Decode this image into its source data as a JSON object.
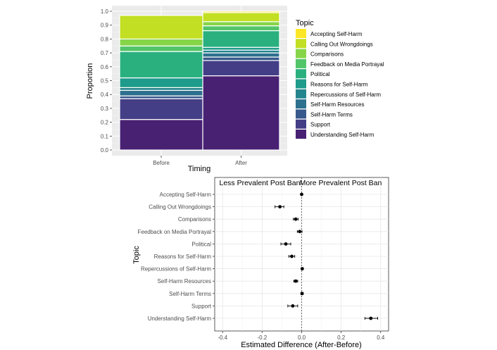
{
  "chart_data": [
    {
      "type": "bar",
      "stacked": true,
      "variant": "mosaic",
      "categories": [
        "Before",
        "After"
      ],
      "column_widths": [
        0.52,
        0.48
      ],
      "xlabel": "Timing",
      "ylabel": "Proportion",
      "ylim": [
        0,
        1
      ],
      "yticks": [
        "0.0",
        "0.1",
        "0.2",
        "0.3",
        "0.4",
        "0.5",
        "0.6",
        "0.7",
        "0.8",
        "0.9",
        "1.0"
      ],
      "grid": true,
      "legend": {
        "title": "Topic",
        "position": "right"
      },
      "series": [
        {
          "name": "Accepting Self-Harm",
          "color": "#FDE725",
          "values": [
            0.0,
            0.01
          ]
        },
        {
          "name": "Calling Out Wrongdoings",
          "color": "#C2DF23",
          "values": [
            0.17,
            0.065
          ]
        },
        {
          "name": "Comparisons",
          "color": "#86D549",
          "values": [
            0.05,
            0.03
          ]
        },
        {
          "name": "Feedback on Media Portrayal",
          "color": "#52C569",
          "values": [
            0.04,
            0.035
          ]
        },
        {
          "name": "Political",
          "color": "#2AB07F",
          "values": [
            0.19,
            0.12
          ]
        },
        {
          "name": "Reasons for Self-Harm",
          "color": "#1E9B8A",
          "values": [
            0.07,
            0.02
          ]
        },
        {
          "name": "Repercussions of Self-Harm",
          "color": "#25858E",
          "values": [
            0.02,
            0.02
          ]
        },
        {
          "name": "Self-Harm Resources",
          "color": "#2D708E",
          "values": [
            0.04,
            0.03
          ]
        },
        {
          "name": "Self-Harm Terms",
          "color": "#38598C",
          "values": [
            0.02,
            0.025
          ]
        },
        {
          "name": "Support",
          "color": "#433E85",
          "values": [
            0.15,
            0.11
          ]
        },
        {
          "name": "Understanding Self-Harm",
          "color": "#482173",
          "values": [
            0.22,
            0.535
          ]
        }
      ]
    },
    {
      "type": "scatter",
      "subtype": "dot-with-error-bars",
      "title_left": "Less Prevalent Post Ban",
      "title_right": "More Prevalent Post Ban",
      "xlabel": "Estimated Difference (After-Before)",
      "ylabel": "Topic",
      "xlim": [
        -0.44,
        0.44
      ],
      "xticks": [
        "-0.4",
        "-0.2",
        "0.0",
        "0.2",
        "0.4"
      ],
      "reference_line_x": 0,
      "grid": true,
      "points": [
        {
          "topic": "Accepting Self-Harm",
          "estimate": 0.0,
          "low": -0.004,
          "high": 0.004
        },
        {
          "topic": "Calling Out Wrongdoings",
          "estimate": -0.11,
          "low": -0.135,
          "high": -0.09
        },
        {
          "topic": "Comparisons",
          "estimate": -0.03,
          "low": -0.042,
          "high": -0.018
        },
        {
          "topic": "Feedback on Media Portrayal",
          "estimate": -0.01,
          "low": -0.022,
          "high": 0.002
        },
        {
          "topic": "Political",
          "estimate": -0.08,
          "low": -0.105,
          "high": -0.055
        },
        {
          "topic": "Reasons for Self-Harm",
          "estimate": -0.05,
          "low": -0.065,
          "high": -0.035
        },
        {
          "topic": "Repercussions of Self-Harm",
          "estimate": 0.003,
          "low": -0.002,
          "high": 0.008
        },
        {
          "topic": "Self-Harm Resources",
          "estimate": -0.03,
          "low": -0.04,
          "high": -0.02
        },
        {
          "topic": "Self-Harm Terms",
          "estimate": 0.002,
          "low": -0.004,
          "high": 0.008
        },
        {
          "topic": "Support",
          "estimate": -0.045,
          "low": -0.07,
          "high": -0.02
        },
        {
          "topic": "Understanding Self-Harm",
          "estimate": 0.35,
          "low": 0.32,
          "high": 0.385
        }
      ]
    }
  ]
}
